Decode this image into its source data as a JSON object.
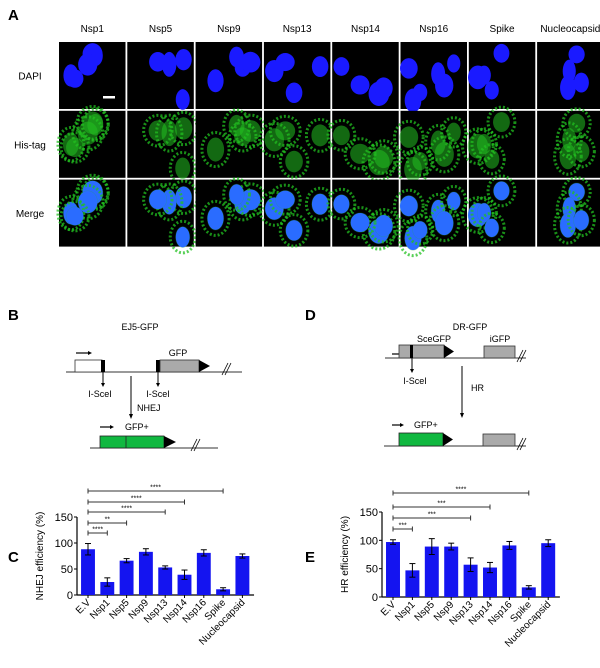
{
  "panels": {
    "a": "A",
    "b": "B",
    "c": "C",
    "d": "D",
    "e": "E"
  },
  "micrographs": {
    "columns": [
      "Nsp1",
      "Nsp5",
      "Nsp9",
      "Nsp13",
      "Nsp14",
      "Nsp16",
      "Spike",
      "Nucleocapsid"
    ],
    "rows": [
      "DAPI",
      "His-tag",
      "Merge"
    ],
    "colors": {
      "dapi": "#1a1aff",
      "his_tag": "#22c020",
      "background": "#000000"
    }
  },
  "diagram_b": {
    "title": "EJ5-GFP",
    "gfp_label": "GFP",
    "site_left": "I-SceI",
    "site_right": "I-SceI",
    "pathway": "NHEJ",
    "product": "GFP+"
  },
  "diagram_d": {
    "title": "DR-GFP",
    "scegfp_label": "SceGFP",
    "igfp_label": "iGFP",
    "site": "I-SceI",
    "pathway": "HR",
    "product": "GFP+"
  },
  "chart_data": [
    {
      "type": "bar",
      "panel": "C",
      "ylabel": "NHEJ efficiency (%)",
      "ylim": [
        0,
        150
      ],
      "yticks": [
        "0",
        "50",
        "100",
        "150"
      ],
      "categories": [
        "E.V",
        "Nsp1",
        "Nsp5",
        "Nsp9",
        "Nsp13",
        "Nsp14",
        "Nsp16",
        "Spike",
        "Nucleocapsid"
      ],
      "values": [
        88,
        25,
        66,
        83,
        53,
        39,
        81,
        11,
        75
      ],
      "errors": [
        11,
        8,
        4,
        6,
        3,
        9,
        6,
        3,
        4
      ],
      "bar_color": "#1414f0",
      "significance": [
        {
          "from": "E.V",
          "to": "Spike",
          "label": "****"
        },
        {
          "from": "E.V",
          "to": "Nsp14",
          "label": "****"
        },
        {
          "from": "E.V",
          "to": "Nsp13",
          "label": "****"
        },
        {
          "from": "E.V",
          "to": "Nsp5",
          "label": "**"
        },
        {
          "from": "E.V",
          "to": "Nsp1",
          "label": "****"
        }
      ]
    },
    {
      "type": "bar",
      "panel": "E",
      "ylabel": "HR efficiency (%)",
      "ylim": [
        0,
        150
      ],
      "yticks": [
        "0",
        "50",
        "100",
        "150"
      ],
      "categories": [
        "E.V",
        "Nsp1",
        "Nsp5",
        "Nsp9",
        "Nsp13",
        "Nsp14",
        "Nsp16",
        "Spike",
        "Nucleocapsid"
      ],
      "values": [
        97,
        47,
        89,
        89,
        57,
        52,
        91,
        17,
        95
      ],
      "errors": [
        4,
        12,
        14,
        6,
        12,
        9,
        7,
        3,
        6
      ],
      "bar_color": "#1414f0",
      "significance": [
        {
          "from": "E.V",
          "to": "Spike",
          "label": "****"
        },
        {
          "from": "E.V",
          "to": "Nsp14",
          "label": "***"
        },
        {
          "from": "E.V",
          "to": "Nsp13",
          "label": "***"
        },
        {
          "from": "E.V",
          "to": "Nsp1",
          "label": "***"
        }
      ]
    }
  ]
}
